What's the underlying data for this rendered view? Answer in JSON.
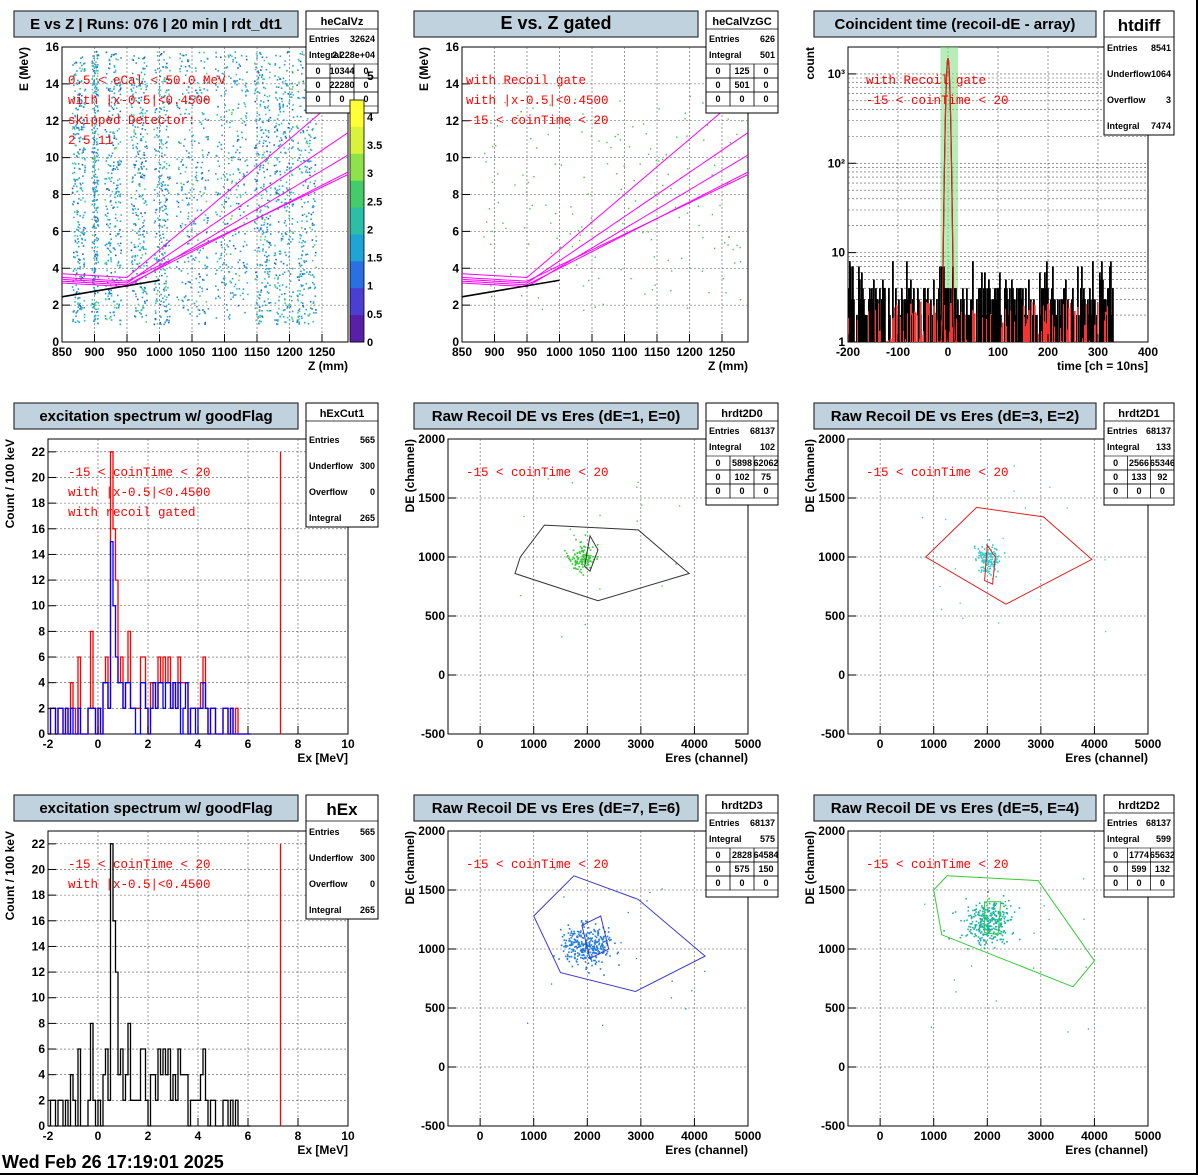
{
  "footer": "Wed Feb 26 17:19:01 2025",
  "colors": {
    "title_bg": "#c0d2de",
    "fit": "#ff00ff",
    "black_line": "#000000",
    "red": "#ff0000",
    "blue": "#0000ff",
    "green": "#00cc00",
    "gate_band": "#7be07b"
  },
  "palette_ticks": [
    "0",
    "0.5",
    "1",
    "1.5",
    "2",
    "2.5",
    "3",
    "3.5",
    "4",
    "5"
  ],
  "chart_data": [
    {
      "type": "heatmap",
      "title": "E vs Z | Runs: 076 | 20 min | rdt_dt1",
      "xlabel": "Z (mm)",
      "ylabel": "E (MeV)",
      "xlim": [
        850,
        1290
      ],
      "ylim": [
        0,
        16
      ],
      "xticks": [
        "850",
        "900",
        "950",
        "1000",
        "1050",
        "1100",
        "1150",
        "1200",
        "1250"
      ],
      "yticks": [
        "0",
        "2",
        "4",
        "6",
        "8",
        "10",
        "12",
        "14",
        "16"
      ],
      "bands_x": [
        [
          865,
          885
        ],
        [
          895,
          905
        ],
        [
          915,
          940
        ],
        [
          955,
          980
        ],
        [
          990,
          1015
        ],
        [
          1025,
          1075
        ],
        [
          1085,
          1135
        ],
        [
          1145,
          1170
        ],
        [
          1175,
          1205
        ],
        [
          1210,
          1240
        ]
      ],
      "annotations": [
        "0.5 < eCal < 50.0 MeV",
        "with |x-0.5|<0.4500",
        "skipped Detector:",
        "2    5    11"
      ],
      "stats": {
        "name": "heCalVz",
        "rows": [
          [
            "Entries",
            "32624"
          ],
          [
            "Integral",
            "2.228e+04"
          ]
        ],
        "grid": [
          [
            "0",
            "10344",
            "0"
          ],
          [
            "0",
            "22280",
            "0"
          ],
          [
            "0",
            "0",
            "0"
          ]
        ]
      },
      "colorbar": true
    },
    {
      "type": "scatter",
      "title": "E vs. Z gated",
      "xlabel": "Z (mm)",
      "ylabel": "E (MeV)",
      "xlim": [
        850,
        1290
      ],
      "ylim": [
        0,
        16
      ],
      "xticks": [
        "850",
        "900",
        "950",
        "1000",
        "1050",
        "1100",
        "1150",
        "1200",
        "1250"
      ],
      "yticks": [
        "0",
        "2",
        "4",
        "6",
        "8",
        "10",
        "12",
        "14",
        "16"
      ],
      "annotations": [
        "with Recoil gate",
        "with |x-0.5|<0.4500",
        "-15 < coinTime < 20"
      ],
      "stats": {
        "name": "heCalVzGC",
        "rows": [
          [
            "Entries",
            "626"
          ],
          [
            "Integral",
            "501"
          ]
        ],
        "grid": [
          [
            "0",
            "125",
            "0"
          ],
          [
            "0",
            "501",
            "0"
          ],
          [
            "0",
            "0",
            "0"
          ]
        ]
      }
    },
    {
      "type": "line",
      "title": "Coincident time (recoil-dE - array)",
      "xlabel": "time [ch = 10ns]",
      "ylabel": "count",
      "xlim": [
        -200,
        400
      ],
      "ylim": [
        1,
        2000
      ],
      "log_y": true,
      "xticks": [
        "-200",
        "-100",
        "0",
        "100",
        "200",
        "300",
        "400"
      ],
      "yticks": [
        "1",
        "10",
        "10²",
        "10³"
      ],
      "gate": [
        -15,
        20
      ],
      "peak": {
        "center": 0,
        "height": 1500
      },
      "annotations": [
        "with Recoil gate",
        "-15 < coinTime < 20"
      ],
      "stats": {
        "name": "htdiff",
        "rows": [
          [
            "Entries",
            "8541"
          ],
          [
            "Underflow",
            "1064"
          ],
          [
            "Overflow",
            "3"
          ],
          [
            "Integral",
            "7474"
          ]
        ]
      }
    },
    {
      "type": "bar",
      "title": "excitation spectrum w/ goodFlag",
      "xlabel": "Ex [MeV]",
      "ylabel": "Count / 100 keV",
      "xlim": [
        -2,
        10
      ],
      "ylim": [
        0,
        23
      ],
      "xticks": [
        "-2",
        "0",
        "2",
        "4",
        "6",
        "8",
        "10"
      ],
      "yticks": [
        "0",
        "2",
        "4",
        "6",
        "8",
        "10",
        "12",
        "14",
        "16",
        "18",
        "20",
        "22"
      ],
      "x_start": -2,
      "bin": 0.1,
      "series": [
        {
          "color": "red",
          "values": [
            0,
            2,
            2,
            0,
            2,
            2,
            0,
            2,
            0,
            4,
            2,
            0,
            6,
            0,
            0,
            0,
            2,
            8,
            2,
            0,
            2,
            0,
            4,
            6,
            2,
            22,
            16,
            12,
            4,
            6,
            2,
            4,
            8,
            2,
            2,
            2,
            2,
            6,
            6,
            2,
            0,
            4,
            4,
            2,
            6,
            4,
            6,
            4,
            6,
            2,
            4,
            2,
            6,
            4,
            4,
            4,
            0,
            2,
            2,
            2,
            2,
            4,
            6,
            2,
            0,
            2,
            2,
            0,
            0,
            0,
            2,
            2,
            0,
            2,
            0,
            2,
            0,
            0,
            0,
            0,
            0
          ]
        },
        {
          "color": "blue",
          "values": [
            0,
            2,
            2,
            0,
            2,
            2,
            0,
            2,
            0,
            2,
            0,
            0,
            2,
            0,
            0,
            0,
            2,
            2,
            2,
            0,
            2,
            0,
            4,
            4,
            2,
            15,
            10,
            6,
            4,
            4,
            2,
            4,
            4,
            2,
            2,
            0,
            0,
            4,
            4,
            2,
            0,
            2,
            4,
            2,
            4,
            4,
            2,
            4,
            4,
            2,
            4,
            2,
            4,
            0,
            2,
            4,
            0,
            2,
            2,
            0,
            2,
            2,
            4,
            2,
            0,
            2,
            2,
            0,
            0,
            0,
            2,
            2,
            0,
            2,
            0,
            0,
            0,
            0,
            0,
            0,
            0
          ]
        }
      ],
      "red_line_x": 7.3,
      "annotations": [
        "-15 < coinTime < 20",
        "with |x-0.5|<0.4500",
        "with recoil gated"
      ],
      "stats": {
        "name": "hExCut1",
        "rows": [
          [
            "Entries",
            "565"
          ],
          [
            "Underflow",
            "300"
          ],
          [
            "Overflow",
            "0"
          ],
          [
            "Integral",
            "265"
          ]
        ]
      }
    },
    {
      "type": "scatter",
      "title": "Raw Recoil DE vs Eres (dE=1, E=0)",
      "xlabel": "Eres (channel)",
      "ylabel": "DE (channel)",
      "xlim": [
        -600,
        5000
      ],
      "ylim": [
        -500,
        2000
      ],
      "xticks": [
        "0",
        "1000",
        "2000",
        "3000",
        "4000",
        "5000"
      ],
      "yticks": [
        "-500",
        "0",
        "500",
        "1000",
        "1500",
        "2000"
      ],
      "cluster": {
        "x": 1900,
        "y": 1000,
        "sx": 120,
        "sy": 60,
        "n": 120,
        "color": "#33cc33"
      },
      "outer_cut": {
        "color": "#333333",
        "pts": [
          [
            750,
            1000
          ],
          [
            1200,
            1270
          ],
          [
            2950,
            1230
          ],
          [
            3900,
            860
          ],
          [
            2200,
            630
          ],
          [
            650,
            860
          ]
        ]
      },
      "inner_cut": {
        "color": "#333333",
        "pts": [
          [
            1950,
            920
          ],
          [
            2050,
            1180
          ],
          [
            2200,
            1060
          ],
          [
            2050,
            880
          ]
        ]
      },
      "annotations": [
        "-15 < coinTime < 20"
      ],
      "stats": {
        "name": "hrdt2D0",
        "rows": [
          [
            "Entries",
            "68137"
          ],
          [
            "Integral",
            "102"
          ]
        ],
        "grid": [
          [
            "0",
            "5898",
            "62062"
          ],
          [
            "0",
            "102",
            "75"
          ],
          [
            "0",
            "0",
            "0"
          ]
        ]
      }
    },
    {
      "type": "scatter",
      "title": "Raw Recoil DE vs Eres (dE=3, E=2)",
      "xlabel": "Eres (channel)",
      "ylabel": "DE (channel)",
      "xlim": [
        -600,
        5000
      ],
      "ylim": [
        -500,
        2000
      ],
      "xticks": [
        "0",
        "1000",
        "2000",
        "3000",
        "4000",
        "5000"
      ],
      "yticks": [
        "-500",
        "0",
        "500",
        "1000",
        "1500",
        "2000"
      ],
      "cluster": {
        "x": 2000,
        "y": 990,
        "sx": 110,
        "sy": 60,
        "n": 140,
        "color": "#33cccc"
      },
      "outer_cut": {
        "color": "#e02020",
        "pts": [
          [
            850,
            1000
          ],
          [
            1800,
            1420
          ],
          [
            3050,
            1340
          ],
          [
            3950,
            980
          ],
          [
            2350,
            600
          ]
        ]
      },
      "inner_cut": {
        "color": "#e02020",
        "pts": [
          [
            1950,
            800
          ],
          [
            2000,
            1100
          ],
          [
            2150,
            1000
          ],
          [
            2100,
            770
          ]
        ]
      },
      "annotations": [
        "-15 < coinTime < 20"
      ],
      "stats": {
        "name": "hrdt2D1",
        "rows": [
          [
            "Entries",
            "68137"
          ],
          [
            "Integral",
            "133"
          ]
        ],
        "grid": [
          [
            "0",
            "2566",
            "65346"
          ],
          [
            "0",
            "133",
            "92"
          ],
          [
            "0",
            "0",
            "0"
          ]
        ]
      }
    },
    {
      "type": "bar",
      "title": "excitation spectrum w/ goodFlag",
      "xlabel": "Ex [MeV]",
      "ylabel": "Count / 100 keV",
      "xlim": [
        -2,
        10
      ],
      "ylim": [
        0,
        23
      ],
      "xticks": [
        "-2",
        "0",
        "2",
        "4",
        "6",
        "8",
        "10"
      ],
      "yticks": [
        "0",
        "2",
        "4",
        "6",
        "8",
        "10",
        "12",
        "14",
        "16",
        "18",
        "20",
        "22"
      ],
      "x_start": -2,
      "bin": 0.1,
      "series": [
        {
          "color": "black",
          "values": [
            0,
            2,
            2,
            0,
            2,
            2,
            0,
            2,
            0,
            4,
            2,
            0,
            6,
            0,
            0,
            0,
            2,
            8,
            2,
            0,
            2,
            0,
            4,
            6,
            2,
            22,
            16,
            12,
            4,
            6,
            2,
            4,
            8,
            2,
            2,
            2,
            2,
            6,
            6,
            2,
            0,
            4,
            4,
            2,
            6,
            4,
            6,
            4,
            6,
            2,
            4,
            2,
            6,
            4,
            4,
            4,
            0,
            2,
            2,
            2,
            2,
            4,
            6,
            2,
            0,
            2,
            2,
            0,
            0,
            0,
            2,
            2,
            0,
            2,
            0,
            2,
            0,
            0,
            0,
            0,
            0
          ]
        }
      ],
      "red_line_x": 7.3,
      "annotations": [
        "-15 < coinTime < 20",
        "with |x-0.5|<0.4500"
      ],
      "stats": {
        "name": "hEx",
        "rows": [
          [
            "Entries",
            "565"
          ],
          [
            "Underflow",
            "300"
          ],
          [
            "Overflow",
            "0"
          ],
          [
            "Integral",
            "265"
          ]
        ]
      }
    },
    {
      "type": "scatter",
      "title": "Raw Recoil DE vs Eres (dE=7, E=6)",
      "xlabel": "Eres (channel)",
      "ylabel": "DE (channel)",
      "xlim": [
        -600,
        5000
      ],
      "ylim": [
        -500,
        2000
      ],
      "xticks": [
        "0",
        "1000",
        "2000",
        "3000",
        "4000",
        "5000"
      ],
      "yticks": [
        "-500",
        "0",
        "500",
        "1000",
        "1500",
        "2000"
      ],
      "cluster": {
        "x": 1980,
        "y": 1030,
        "sx": 220,
        "sy": 80,
        "n": 320,
        "color": "#1f7adf"
      },
      "outer_cut": {
        "color": "#3b3bd0",
        "pts": [
          [
            1000,
            1280
          ],
          [
            1750,
            1620
          ],
          [
            2950,
            1420
          ],
          [
            4200,
            940
          ],
          [
            2900,
            640
          ],
          [
            1500,
            800
          ]
        ]
      },
      "inner_cut": {
        "color": "#3b3bd0",
        "pts": [
          [
            1900,
            1200
          ],
          [
            2250,
            1280
          ],
          [
            2400,
            1000
          ],
          [
            2050,
            920
          ]
        ]
      },
      "annotations": [
        "-15 < coinTime < 20"
      ],
      "stats": {
        "name": "hrdt2D3",
        "rows": [
          [
            "Entries",
            "68137"
          ],
          [
            "Integral",
            "575"
          ]
        ],
        "grid": [
          [
            "0",
            "2828",
            "64584"
          ],
          [
            "0",
            "575",
            "150"
          ],
          [
            "0",
            "0",
            "0"
          ]
        ]
      }
    },
    {
      "type": "scatter",
      "title": "Raw Recoil DE vs Eres (dE=5, E=4)",
      "xlabel": "Eres (channel)",
      "ylabel": "DE (channel)",
      "xlim": [
        -600,
        5000
      ],
      "ylim": [
        -500,
        2000
      ],
      "xticks": [
        "0",
        "1000",
        "2000",
        "3000",
        "4000",
        "5000"
      ],
      "yticks": [
        "-500",
        "0",
        "500",
        "1000",
        "1500",
        "2000"
      ],
      "cluster": {
        "x": 2000,
        "y": 1230,
        "sx": 220,
        "sy": 90,
        "n": 320,
        "color": "#18b3a0"
      },
      "outer_cut": {
        "color": "#33cc33",
        "pts": [
          [
            1000,
            1500
          ],
          [
            1250,
            1620
          ],
          [
            2950,
            1580
          ],
          [
            4000,
            900
          ],
          [
            3600,
            680
          ],
          [
            1150,
            1120
          ]
        ]
      },
      "inner_cut": {
        "color": "#33cc33",
        "pts": [
          [
            1950,
            1400
          ],
          [
            2250,
            1400
          ],
          [
            2200,
            1120
          ],
          [
            1950,
            1140
          ]
        ]
      },
      "annotations": [
        "-15 < coinTime < 20"
      ],
      "stats": {
        "name": "hrdt2D2",
        "rows": [
          [
            "Entries",
            "68137"
          ],
          [
            "Integral",
            "599"
          ]
        ],
        "grid": [
          [
            "0",
            "1774",
            "65632"
          ],
          [
            "0",
            "599",
            "132"
          ],
          [
            "0",
            "0",
            "0"
          ]
        ]
      }
    }
  ]
}
